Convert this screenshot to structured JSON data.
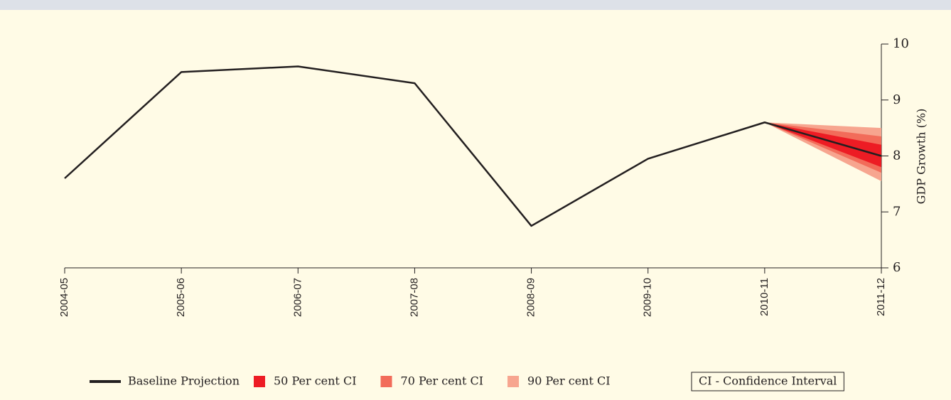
{
  "chart_data": {
    "type": "fan",
    "y_label": "GDP Growth (%)",
    "categories": [
      "2004-05",
      "2005-06",
      "2006-07",
      "2007-08",
      "2008-09",
      "2009-10",
      "2010-11",
      "2011-12"
    ],
    "series": [
      {
        "name": "Baseline Projection",
        "color": "#231f20",
        "values": [
          7.6,
          9.5,
          9.6,
          9.3,
          6.75,
          7.95,
          8.6,
          8.0
        ]
      },
      {
        "name": "50 Per cent CI",
        "color": "#ed1c24",
        "range": [
          7.8,
          8.2
        ]
      },
      {
        "name": "70 Per cent CI",
        "color": "#f26c5a",
        "range": [
          7.7,
          8.35
        ]
      },
      {
        "name": "90 Per cent CI",
        "color": "#f7a58f",
        "range": [
          7.55,
          8.5
        ]
      }
    ],
    "ylim": [
      6,
      10
    ],
    "yticks": [
      6,
      7,
      8,
      9,
      10
    ],
    "note": "CI - Confidence Interval"
  }
}
